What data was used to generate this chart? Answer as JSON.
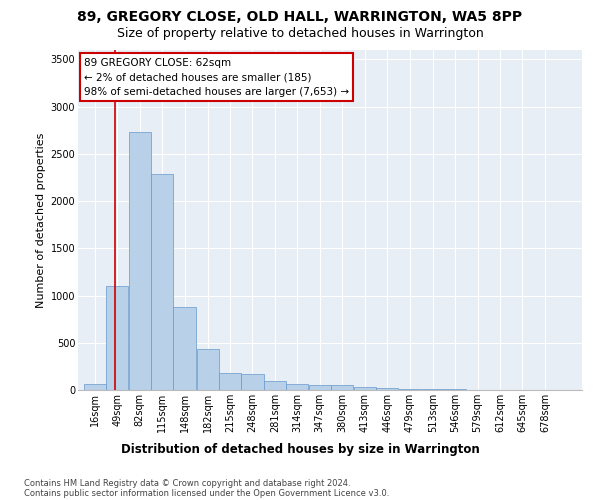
{
  "title1": "89, GREGORY CLOSE, OLD HALL, WARRINGTON, WA5 8PP",
  "title2": "Size of property relative to detached houses in Warrington",
  "xlabel": "Distribution of detached houses by size in Warrington",
  "ylabel": "Number of detached properties",
  "footnote1": "Contains HM Land Registry data © Crown copyright and database right 2024.",
  "footnote2": "Contains public sector information licensed under the Open Government Licence v3.0.",
  "annotation_line1": "89 GREGORY CLOSE: 62sqm",
  "annotation_line2": "← 2% of detached houses are smaller (185)",
  "annotation_line3": "98% of semi-detached houses are larger (7,653) →",
  "bar_color": "#b8d0e8",
  "bar_edge_color": "#6699cc",
  "red_line_x": 62,
  "categories": [
    "16sqm",
    "49sqm",
    "82sqm",
    "115sqm",
    "148sqm",
    "182sqm",
    "215sqm",
    "248sqm",
    "281sqm",
    "314sqm",
    "347sqm",
    "380sqm",
    "413sqm",
    "446sqm",
    "479sqm",
    "513sqm",
    "546sqm",
    "579sqm",
    "612sqm",
    "645sqm",
    "678sqm"
  ],
  "bin_edges": [
    16,
    49,
    82,
    115,
    148,
    182,
    215,
    248,
    281,
    314,
    347,
    380,
    413,
    446,
    479,
    513,
    546,
    579,
    612,
    645,
    678,
    711
  ],
  "values": [
    60,
    1100,
    2730,
    2290,
    880,
    430,
    175,
    170,
    100,
    65,
    55,
    55,
    35,
    25,
    15,
    10,
    8,
    5,
    4,
    3,
    2
  ],
  "ylim": [
    0,
    3600
  ],
  "yticks": [
    0,
    500,
    1000,
    1500,
    2000,
    2500,
    3000,
    3500
  ],
  "background_color": "#e8eef5",
  "grid_color": "#ffffff",
  "annotation_box_color": "#ffffff",
  "annotation_box_edge": "#cc0000",
  "red_line_color": "#cc0000",
  "title1_fontsize": 10,
  "title2_fontsize": 9,
  "xlabel_fontsize": 8.5,
  "ylabel_fontsize": 8,
  "tick_fontsize": 7,
  "annot_fontsize": 7.5
}
